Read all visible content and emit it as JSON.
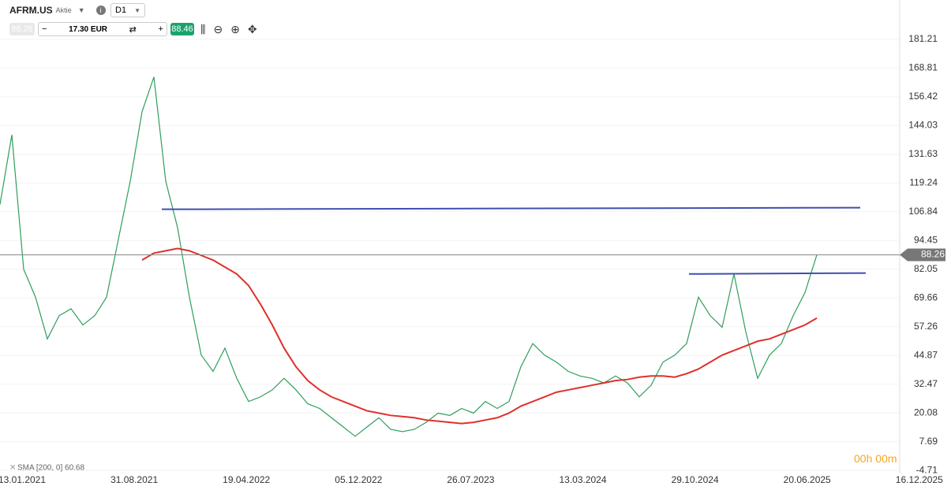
{
  "toolbar": {
    "symbol": "AFRM.US",
    "kind": "Aktie",
    "interval": "D1",
    "bid": "88.26",
    "amount": "17.30 EUR",
    "ask": "88.46"
  },
  "countdown": "00h 00m",
  "chart_data": {
    "type": "line",
    "x_labels": [
      "13.01.2021",
      "31.08.2021",
      "19.04.2022",
      "05.12.2022",
      "26.07.2023",
      "13.03.2024",
      "29.10.2024",
      "20.06.2025",
      "16.12.2025"
    ],
    "ylim": [
      -5.7,
      194.1
    ],
    "yticks": [
      181.21,
      168.81,
      156.42,
      144.03,
      131.63,
      119.24,
      106.84,
      94.45,
      82.05,
      69.66,
      57.26,
      44.87,
      32.47,
      20.08,
      7.69,
      -4.71
    ],
    "grid": true,
    "last_price": 88.26,
    "series": [
      {
        "color": "#2e9e5b",
        "values": [
          110,
          140,
          82,
          70,
          52,
          62,
          65,
          58,
          62,
          70,
          95,
          120,
          150,
          165,
          120,
          100,
          70,
          45,
          38,
          48,
          35,
          25,
          27,
          30,
          35,
          30,
          24,
          22,
          18,
          14,
          10,
          14,
          18,
          13,
          12,
          13,
          16,
          20,
          19,
          22,
          20,
          25,
          22,
          25,
          40,
          50,
          45,
          42,
          38,
          36,
          35,
          33,
          36,
          33,
          27,
          32,
          42,
          45,
          50,
          70,
          62,
          57,
          80,
          55,
          35,
          45,
          50,
          62,
          72,
          88.26
        ]
      },
      {
        "name": "SMA [200, 0] 60.68",
        "color": "#e0302a",
        "values": [
          null,
          null,
          null,
          null,
          null,
          null,
          null,
          null,
          null,
          null,
          null,
          null,
          86,
          89,
          90,
          91,
          90,
          88,
          86,
          83,
          80,
          75,
          67,
          58,
          48,
          40,
          34,
          30,
          27,
          25,
          23,
          21,
          20,
          19,
          18.5,
          18,
          17,
          16.5,
          16,
          15.5,
          16,
          17,
          18,
          20,
          23,
          25,
          27,
          29,
          30,
          31,
          32,
          33,
          34,
          34.5,
          35.5,
          36,
          36,
          35.5,
          37,
          39,
          42,
          45,
          47,
          49,
          51,
          52,
          54,
          56,
          58,
          61
        ]
      }
    ],
    "trend_lines": [
      {
        "color": "#3f4fb0",
        "values": [
          107.9,
          108.6
        ]
      },
      {
        "color": "#3f4fb0",
        "values": [
          80.0,
          80.4
        ]
      }
    ]
  }
}
